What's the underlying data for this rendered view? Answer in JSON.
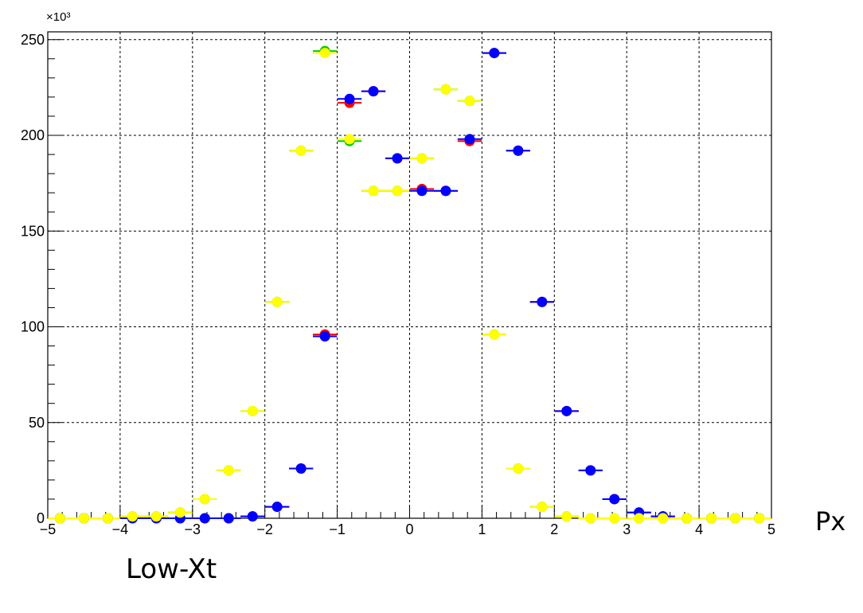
{
  "chart_data": {
    "type": "scatter",
    "title": "",
    "xlabel": "Px",
    "ylabel": "",
    "y_multiplier_label": "×10³",
    "xlim": [
      -5,
      5
    ],
    "ylim": [
      0,
      255
    ],
    "x_ticks": [
      "−5",
      "−4",
      "−3",
      "−2",
      "−1",
      "0",
      "1",
      "2",
      "3",
      "4",
      "5"
    ],
    "y_ticks": [
      "0",
      "50",
      "100",
      "150",
      "200",
      "250"
    ],
    "grid": true,
    "bin_width": 0.333,
    "series": [
      {
        "color": "#ff0000",
        "x": [
          -4.83,
          -4.5,
          -4.17,
          -3.83,
          -3.5,
          -3.17,
          -2.83,
          -2.5,
          -2.17,
          -1.83,
          -1.5,
          -1.17,
          -0.83,
          -0.5,
          -0.17,
          0.17,
          0.5,
          0.83,
          1.17,
          1.5,
          1.83,
          2.17,
          2.5,
          2.83,
          3.17,
          3.5,
          3.83,
          4.17,
          4.5,
          4.83
        ],
        "y": [
          0,
          0,
          0,
          0,
          0,
          0,
          0,
          0,
          1,
          6,
          26,
          96,
          217,
          223,
          188,
          172,
          171,
          197,
          243,
          192,
          113,
          56,
          25,
          10,
          3,
          1,
          0,
          0,
          0,
          0
        ]
      },
      {
        "color": "#0000ff",
        "x": [
          -4.83,
          -4.5,
          -4.17,
          -3.83,
          -3.5,
          -3.17,
          -2.83,
          -2.5,
          -2.17,
          -1.83,
          -1.5,
          -1.17,
          -0.83,
          -0.5,
          -0.17,
          0.17,
          0.5,
          0.83,
          1.17,
          1.5,
          1.83,
          2.17,
          2.5,
          2.83,
          3.17,
          3.5,
          3.83,
          4.17,
          4.5,
          4.83
        ],
        "y": [
          0,
          0,
          0,
          0,
          0,
          0,
          0,
          0,
          1,
          6,
          26,
          95,
          219,
          223,
          188,
          171,
          171,
          198,
          243,
          192,
          113,
          56,
          25,
          10,
          3,
          1,
          0,
          0,
          0,
          0
        ]
      },
      {
        "color": "#00cc00",
        "x": [
          -4.83,
          -4.5,
          -4.17,
          -3.83,
          -3.5,
          -3.17,
          -2.83,
          -2.5,
          -2.17,
          -1.83,
          -1.5,
          -1.17,
          -0.83,
          -0.5,
          -0.17,
          0.17,
          0.5,
          0.83,
          1.17,
          1.5,
          1.83,
          2.17,
          2.5,
          2.83,
          3.17,
          3.5,
          3.83,
          4.17,
          4.5,
          4.83
        ],
        "y": [
          0,
          0,
          0,
          1,
          1,
          3,
          10,
          25,
          56,
          113,
          192,
          244,
          197,
          171,
          171,
          188,
          224,
          218,
          96,
          26,
          6,
          1,
          0,
          0,
          0,
          0,
          0,
          0,
          0,
          0
        ]
      },
      {
        "color": "#ffff00",
        "x": [
          -4.83,
          -4.5,
          -4.17,
          -3.83,
          -3.5,
          -3.17,
          -2.83,
          -2.5,
          -2.17,
          -1.83,
          -1.5,
          -1.17,
          -0.83,
          -0.5,
          -0.17,
          0.17,
          0.5,
          0.83,
          1.17,
          1.5,
          1.83,
          2.17,
          2.5,
          2.83,
          3.17,
          3.5,
          3.83,
          4.17,
          4.5,
          4.83
        ],
        "y": [
          0,
          0,
          0,
          1,
          1,
          3,
          10,
          25,
          56,
          113,
          192,
          243,
          198,
          171,
          171,
          188,
          224,
          218,
          96,
          26,
          6,
          1,
          0,
          0,
          0,
          0,
          0,
          0,
          0,
          0
        ]
      }
    ]
  },
  "labels": {
    "x_axis_title": "Px",
    "footer": "Low-Xt"
  }
}
